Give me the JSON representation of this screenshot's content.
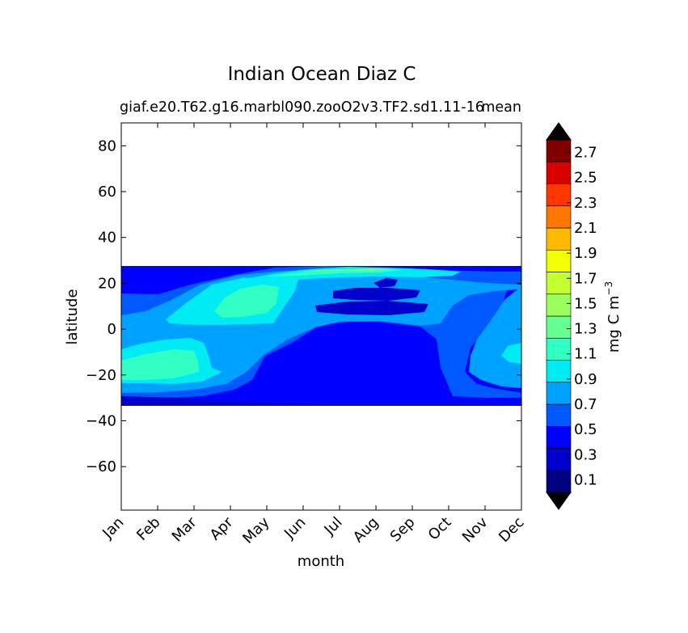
{
  "chart_data": {
    "type": "contourf",
    "title": "Indian Ocean Diaz C",
    "subtitle_left": "giaf.e20.T62.g16.marbl090.zooO2v3.TF2.sd1.11-16",
    "subtitle_right": "mean",
    "xlabel": "month",
    "ylabel": "latitude",
    "x_categories": [
      "Jan",
      "Feb",
      "Mar",
      "Apr",
      "May",
      "Jun",
      "Jul",
      "Aug",
      "Sep",
      "Oct",
      "Nov",
      "Dec"
    ],
    "y_ticks": [
      80,
      60,
      40,
      20,
      0,
      -20,
      -40,
      -60
    ],
    "ylim": [
      -79,
      90
    ],
    "data_lat_range": [
      -34,
      27
    ],
    "colorbar": {
      "label": "mg C m",
      "label_exp": "−3",
      "levels": [
        0,
        0.1,
        0.2,
        0.3,
        0.4,
        0.5,
        0.6,
        0.7,
        0.8,
        0.9,
        1.0,
        1.1,
        1.2,
        1.3,
        1.4,
        1.5,
        1.6,
        1.7,
        1.8,
        1.9,
        2.0,
        2.1,
        2.2,
        2.3,
        2.4,
        2.5,
        2.6,
        2.7,
        2.8
      ],
      "tick_labels": [
        "0.1",
        "0.3",
        "0.5",
        "0.7",
        "0.9",
        "1.1",
        "1.3",
        "1.5",
        "1.7",
        "1.9",
        "2.1",
        "2.3",
        "2.5",
        "2.7"
      ],
      "colors": [
        "#000080",
        "#0000cd",
        "#0000ff",
        "#0058ff",
        "#00a2ff",
        "#00ebf3",
        "#32ffc4",
        "#66ff91",
        "#9aff5d",
        "#c4ff32",
        "#f3ff04",
        "#ffba00",
        "#ff7700",
        "#ff3600",
        "#db0000",
        "#800000"
      ],
      "extend_min_color": "#000000",
      "extend_max_color": "#000000"
    },
    "grid": false,
    "legend": "colorbar-right"
  }
}
